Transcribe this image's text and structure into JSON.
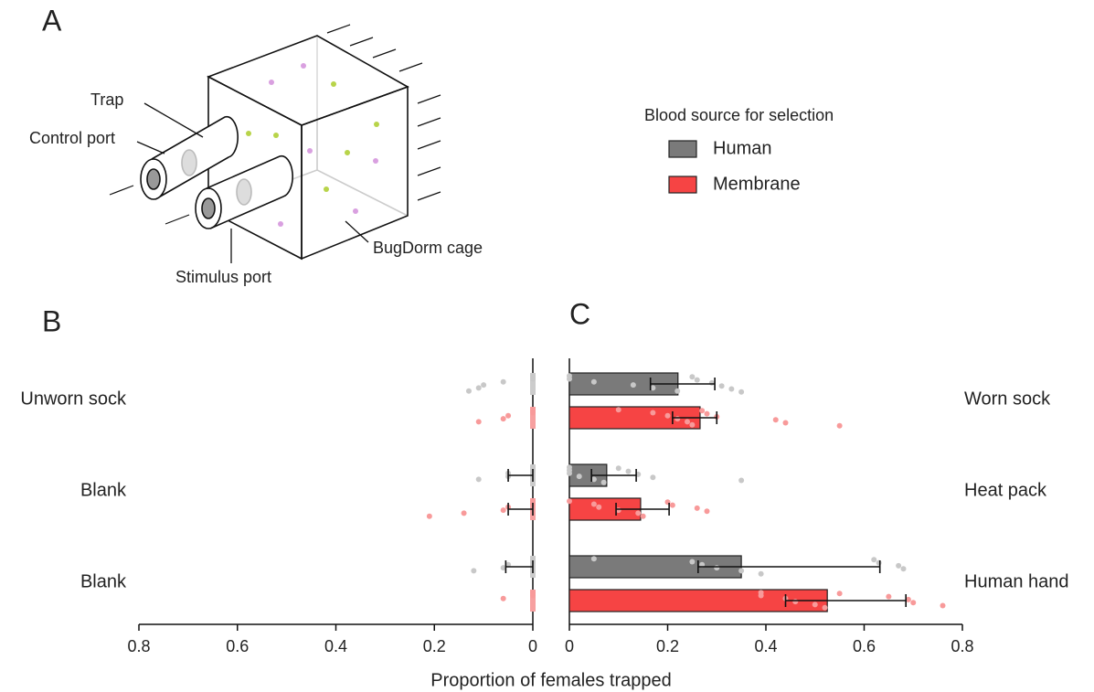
{
  "panels": [
    "A",
    "B",
    "C"
  ],
  "diagram": {
    "labels": [
      "Trap",
      "Control port",
      "Stimulus port",
      "BugDorm cage"
    ]
  },
  "chart_data": [
    {
      "type": "bar",
      "orientation": "horizontal",
      "xreverse": true,
      "categories": [
        "Unworn sock",
        "Blank",
        "Blank"
      ],
      "series": [
        {
          "name": "Human",
          "color": "#cccccc",
          "values": [
            0,
            0,
            0
          ],
          "lower": [
            0,
            0,
            0
          ],
          "upper": [
            0,
            0.05,
            0.055
          ],
          "points": [
            [
              0,
              0,
              0.06,
              0.1,
              0.11,
              0.13
            ],
            [
              0,
              0,
              0.05,
              0.05,
              0.11
            ],
            [
              0,
              0,
              0.05,
              0.06,
              0.12
            ]
          ]
        },
        {
          "name": "Membrane",
          "color": "#f7a0a0",
          "values": [
            0,
            0,
            0
          ],
          "lower": [
            0,
            0,
            0
          ],
          "upper": [
            0,
            0.05,
            0
          ],
          "points": [
            [
              0,
              0,
              0.05,
              0.06,
              0.11
            ],
            [
              0,
              0,
              0.05,
              0.06,
              0.14,
              0.21
            ],
            [
              0,
              0,
              0.06
            ]
          ]
        }
      ],
      "xlim": [
        0,
        0.8
      ],
      "xticks": [
        0,
        0.2,
        0.4,
        0.6,
        0.8
      ]
    },
    {
      "type": "bar",
      "orientation": "horizontal",
      "xreverse": false,
      "legend_title": "Blood source for selection",
      "xlabel": "Proportion of females trapped",
      "categories": [
        "Worn sock",
        "Heat pack",
        "Human hand"
      ],
      "series": [
        {
          "name": "Human",
          "color": "#7a7a7a",
          "values": [
            0.221,
            0.076,
            0.35
          ],
          "lower": [
            0.165,
            0.045,
            0.262
          ],
          "upper": [
            0.296,
            0.136,
            0.632
          ],
          "points": [
            [
              0,
              0,
              0.05,
              0.13,
              0.17,
              0.22,
              0.25,
              0.26,
              0.29,
              0.31,
              0.33,
              0.35
            ],
            [
              0,
              0,
              0,
              0.02,
              0.05,
              0.07,
              0.1,
              0.12,
              0.14,
              0.17,
              0.35
            ],
            [
              0.05,
              0.25,
              0.27,
              0.3,
              0.35,
              0.39,
              0.62,
              0.63,
              0.67,
              0.68
            ]
          ]
        },
        {
          "name": "Membrane",
          "color": "#f64444",
          "values": [
            0.266,
            0.145,
            0.525
          ],
          "lower": [
            0.21,
            0.095,
            0.44
          ],
          "upper": [
            0.3,
            0.203,
            0.685
          ],
          "points": [
            [
              0.1,
              0.17,
              0.2,
              0.22,
              0.24,
              0.25,
              0.27,
              0.28,
              0.3,
              0.42,
              0.44,
              0.55
            ],
            [
              0,
              0.05,
              0.06,
              0.1,
              0.14,
              0.15,
              0.2,
              0.21,
              0.26,
              0.28
            ],
            [
              0.39,
              0.39,
              0.44,
              0.46,
              0.5,
              0.52,
              0.55,
              0.65,
              0.69,
              0.7,
              0.76
            ]
          ]
        }
      ],
      "xlim": [
        0,
        0.8
      ],
      "xticks": [
        0,
        0.2,
        0.4,
        0.6,
        0.8
      ]
    }
  ]
}
